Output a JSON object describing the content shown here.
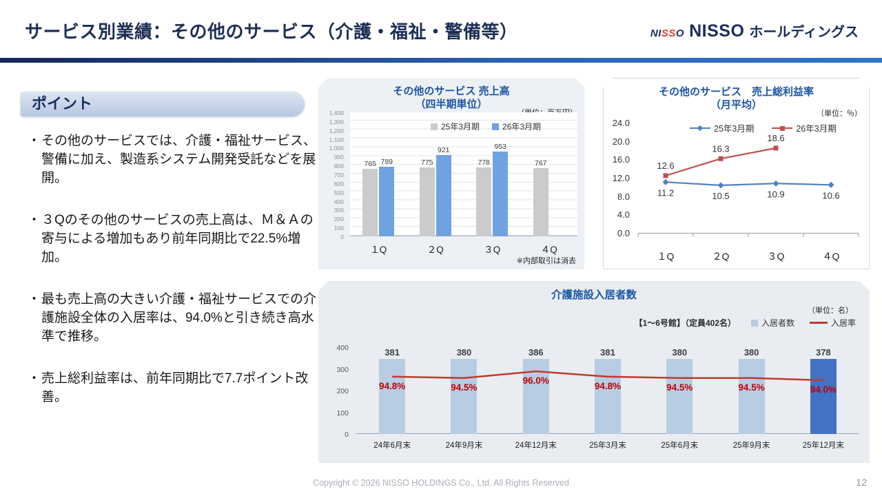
{
  "header": {
    "title": "サービス別業績：その他のサービス（介護・福祉・警備等）",
    "logo": {
      "mark_pre": "NI",
      "mark_red": "SS",
      "mark_post": "O",
      "name": "NISSO",
      "suffix": "ホールディングス"
    }
  },
  "points": {
    "heading": "ポイント",
    "bullets": [
      "その他のサービスでは、介護・福祉サービス、警備に加え、製造系システム開発受託などを展開。",
      "３Qのその他のサービスの売上高は、Ｍ＆Ａの寄与による増加もあり前年同期比で22.5%増加。",
      "最も売上高の大きい介護・福祉サービスでの介護施設全体の入居率は、94.0%と引き続き高水準で推移。",
      "売上総利益率は、前年同期比で7.7ポイント改善。"
    ]
  },
  "chart_data": [
    {
      "id": "sales",
      "type": "bar",
      "title": "その他のサービス 売上高",
      "subtitle": "（四半期単位）",
      "unit_note": "（単位：百万円）",
      "footnote": "※内部取引は消去",
      "categories": [
        "１Q",
        "２Q",
        "３Q",
        "４Q"
      ],
      "series": [
        {
          "name": "25年3月期",
          "color": "#c9cbcd",
          "values": [
            765,
            775,
            778,
            767
          ]
        },
        {
          "name": "26年3月期",
          "color": "#6ea3e0",
          "values": [
            789,
            921,
            953,
            null
          ]
        }
      ],
      "ylim": [
        0,
        1400
      ],
      "y_ticks": [
        "1,400",
        "1,300",
        "1,200",
        "1,100",
        "1,000",
        "900",
        "800",
        "700",
        "600",
        "500",
        "400",
        "300",
        "200",
        "100",
        "0"
      ],
      "legend_position": "top",
      "grid": true
    },
    {
      "id": "margin",
      "type": "line",
      "title": "その他のサービス　売上総利益率",
      "subtitle": "（月平均）",
      "unit_note": "（単位：％）",
      "categories": [
        "１Q",
        "２Q",
        "３Q",
        "４Q"
      ],
      "series": [
        {
          "name": "25年3月期",
          "color": "#4f81bd",
          "marker": "diamond",
          "label_pos": "below",
          "values": [
            11.2,
            10.5,
            10.9,
            10.6
          ]
        },
        {
          "name": "26年3月期",
          "color": "#c0504d",
          "marker": "square",
          "label_pos": "above",
          "values": [
            12.6,
            16.3,
            18.6,
            null
          ]
        }
      ],
      "ylim": [
        0,
        24
      ],
      "y_ticks": [
        "24.0",
        "20.0",
        "16.0",
        "12.0",
        "8.0",
        "4.0",
        "0.0"
      ],
      "legend_position": "top",
      "grid": false
    },
    {
      "id": "occupancy",
      "type": "bar-line",
      "title": "介護施設入居者数",
      "unit_note": "（単位：名）",
      "building_note": "【1～6号館】（定員402名）",
      "categories": [
        "24年6月末",
        "24年9月末",
        "24年12月末",
        "25年3月末",
        "25年6月末",
        "25年9月末",
        "25年12月末"
      ],
      "bars": {
        "name": "入居者数",
        "color": "#b8cce4",
        "highlight_color": "#4472c4",
        "highlight_index": 6,
        "values": [
          381,
          380,
          386,
          381,
          380,
          380,
          378
        ]
      },
      "line": {
        "name": "入居率",
        "color": "#c0392b",
        "label_color": "#c00000",
        "values": [
          94.8,
          94.5,
          96.0,
          94.8,
          94.5,
          94.5,
          94.0
        ],
        "values_pct": [
          "94.8%",
          "94.5%",
          "96.0%",
          "94.8%",
          "94.5%",
          "94.5%",
          "94.0%"
        ]
      },
      "ylim": [
        0,
        400
      ],
      "y_ticks": [
        "400",
        "300",
        "200",
        "100",
        "0"
      ],
      "legend_position": "top-right",
      "grid": false
    }
  ],
  "footer": {
    "copyright": "Copyright © 2026 NISSO HOLDINGS Co., Ltd. All Rights Reserved",
    "page": "12"
  }
}
